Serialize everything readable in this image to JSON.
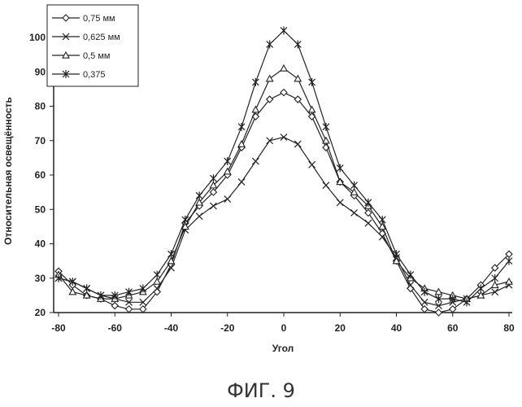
{
  "caption": "ФИГ. 9",
  "chart_data": {
    "type": "line",
    "xlabel": "Угол",
    "ylabel": "Относительная освещённость",
    "xlim": [
      -80,
      80
    ],
    "ylim": [
      20,
      100
    ],
    "xticks": [
      -80,
      -60,
      -40,
      -20,
      0,
      20,
      40,
      60,
      80
    ],
    "yticks": [
      20,
      30,
      40,
      50,
      60,
      70,
      80,
      90,
      100
    ],
    "grid": false,
    "legend_position": "top-left",
    "x": [
      -80,
      -75,
      -70,
      -65,
      -60,
      -55,
      -50,
      -45,
      -40,
      -35,
      -30,
      -25,
      -20,
      -15,
      -10,
      -5,
      0,
      5,
      10,
      15,
      20,
      25,
      30,
      35,
      40,
      45,
      50,
      55,
      60,
      65,
      70,
      75,
      80
    ],
    "series": [
      {
        "name": "0,75 мм",
        "marker": "diamond",
        "values": [
          32,
          28,
          25,
          24,
          22,
          21,
          21,
          26,
          34,
          46,
          51,
          55,
          60,
          68,
          77,
          82,
          84,
          82,
          77,
          68,
          58,
          54,
          49,
          43,
          35,
          27,
          21,
          20,
          21,
          24,
          28,
          33,
          37
        ]
      },
      {
        "name": "0,625 мм",
        "marker": "x",
        "values": [
          30,
          29,
          27,
          25,
          24,
          23,
          23,
          27,
          33,
          44,
          48,
          51,
          53,
          58,
          64,
          70,
          71,
          69,
          63,
          57,
          52,
          49,
          46,
          42,
          36,
          28,
          23,
          22,
          23,
          24,
          25,
          26,
          28
        ]
      },
      {
        "name": "0,5 мм",
        "marker": "triangle",
        "values": [
          31,
          26,
          25,
          24,
          24,
          25,
          26,
          29,
          35,
          45,
          52,
          57,
          61,
          69,
          79,
          88,
          91,
          88,
          79,
          70,
          58,
          55,
          51,
          45,
          35,
          30,
          27,
          26,
          25,
          24,
          25,
          28,
          29
        ]
      },
      {
        "name": "0,375",
        "marker": "star",
        "values": [
          30,
          29,
          27,
          25,
          25,
          26,
          27,
          31,
          37,
          47,
          54,
          59,
          64,
          74,
          87,
          98,
          102,
          98,
          87,
          74,
          62,
          57,
          52,
          47,
          37,
          31,
          26,
          24,
          24,
          23,
          27,
          30,
          35
        ]
      }
    ]
  }
}
